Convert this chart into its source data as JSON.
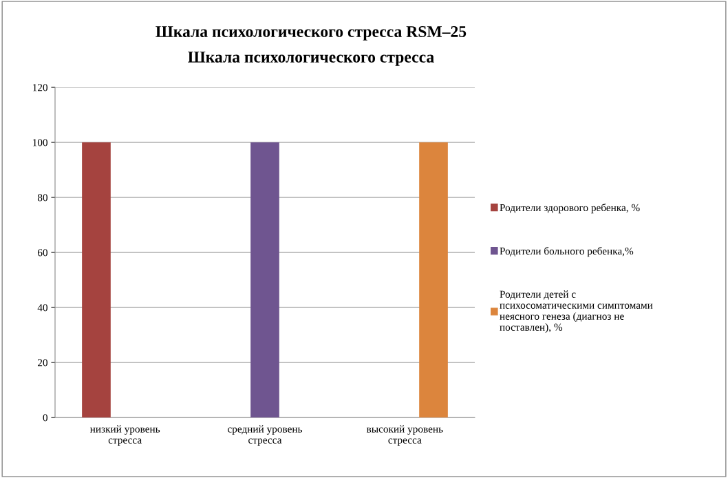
{
  "chart_data": {
    "type": "bar",
    "title": "Шкала психологического стресса RSM–25",
    "subtitle": "Шкала психологического стресса",
    "categories": [
      "низкий уровень стресса",
      "средний уровень стресса",
      "высокий уровень стресса"
    ],
    "series": [
      {
        "name": "Родители здорового ребенка, %",
        "color": "#a5433f",
        "values": [
          100,
          null,
          null
        ]
      },
      {
        "name": "Родители больного ребенка,%",
        "color": "#6f5590",
        "values": [
          null,
          100,
          null
        ]
      },
      {
        "name": "Родители детей с психосоматическими симптомами неясного генеза (диагноз не поставлен), %",
        "color": "#dc853d",
        "values": [
          null,
          null,
          100
        ]
      }
    ],
    "ylim": [
      0,
      120
    ],
    "yticks": [
      0,
      20,
      40,
      60,
      80,
      100,
      120
    ],
    "grid": "y",
    "legend": "right"
  }
}
